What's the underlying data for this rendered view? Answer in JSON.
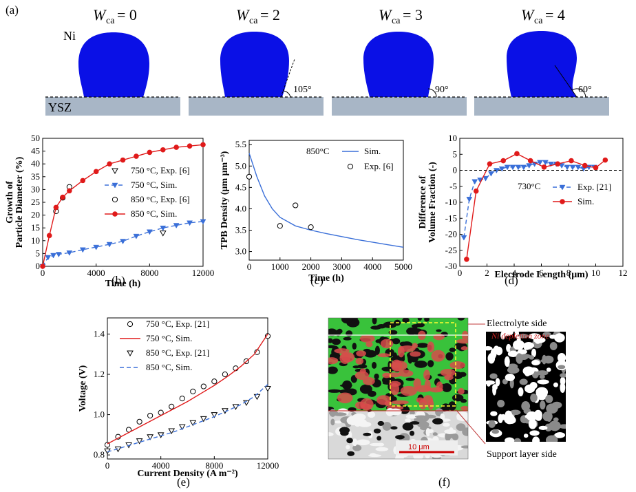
{
  "panel_labels": {
    "a": "(a)",
    "b": "(b)",
    "c": "(c)",
    "d": "(d)",
    "e": "(e)",
    "f": "(f)"
  },
  "panel_a": {
    "wca_symbol": "W",
    "wca_subscript": "ca",
    "drops": [
      {
        "title": "= 0",
        "angle": ""
      },
      {
        "title": "= 2",
        "angle": "105°"
      },
      {
        "title": "= 3",
        "angle": "90°"
      },
      {
        "title": "= 4",
        "angle": "60°"
      }
    ],
    "ni_label": "Ni",
    "ysz_label": "YSZ",
    "colors": {
      "ni": "#0a10e6",
      "ysz": "#a8b6c6"
    }
  },
  "chart_data": [
    {
      "id": "b",
      "type": "line",
      "xlabel": "Time (h)",
      "ylabel_line1": "Growth of",
      "ylabel_line2": "Particle Diameter (%)",
      "xlim": [
        0,
        12000
      ],
      "ylim": [
        0,
        50
      ],
      "xticks": [
        0,
        4000,
        8000,
        12000
      ],
      "yticks": [
        0,
        5,
        10,
        15,
        20,
        25,
        30,
        35,
        40,
        45,
        50
      ],
      "series": [
        {
          "name": "750 °C, Exp. [6]",
          "style": "tri-down-open",
          "x": [
            9000
          ],
          "y": [
            13
          ]
        },
        {
          "name": "750 °C, Sim.",
          "style": "dash-tri-blue",
          "x": [
            0,
            400,
            800,
            1200,
            2000,
            3000,
            4000,
            5000,
            6000,
            7000,
            8000,
            9000,
            10000,
            11000,
            12000
          ],
          "y": [
            0,
            3.5,
            4.3,
            4.7,
            5.3,
            6.5,
            7.5,
            8.6,
            9.8,
            11.8,
            13.5,
            15,
            16,
            17,
            17.5
          ]
        },
        {
          "name": "850 °C, Exp. [6]",
          "style": "circle-open",
          "x": [
            1000,
            1500,
            2000
          ],
          "y": [
            21.5,
            26.8,
            31
          ]
        },
        {
          "name": "850 °C, Sim.",
          "style": "line-circle-red",
          "x": [
            0,
            500,
            1000,
            1500,
            2000,
            3000,
            4000,
            5000,
            6000,
            7000,
            8000,
            9000,
            10000,
            11000,
            12000
          ],
          "y": [
            0,
            12,
            23,
            27,
            29.5,
            33.5,
            37,
            40,
            41.5,
            43,
            44.5,
            45.5,
            46.5,
            47,
            47.5
          ]
        }
      ]
    },
    {
      "id": "c",
      "type": "line",
      "xlabel": "Time (h)",
      "ylabel": "TPB Density (μm μm⁻³)",
      "xlim": [
        0,
        5000
      ],
      "ylim": [
        2.8,
        5.6
      ],
      "xticks": [
        0,
        1000,
        2000,
        3000,
        4000,
        5000
      ],
      "yticks": [
        3.0,
        3.5,
        4.0,
        4.5,
        5.0,
        5.5
      ],
      "annotation": "850°C",
      "series": [
        {
          "name": "Sim.",
          "style": "line-blue",
          "x": [
            0,
            250,
            500,
            750,
            1000,
            1500,
            2000,
            2500,
            3000,
            3500,
            4000,
            4500,
            5000
          ],
          "y": [
            5.3,
            4.75,
            4.3,
            4.0,
            3.8,
            3.6,
            3.5,
            3.42,
            3.35,
            3.28,
            3.22,
            3.16,
            3.1
          ]
        },
        {
          "name": "Exp. [6]",
          "style": "circle-open",
          "x": [
            0,
            1000,
            1500,
            2000
          ],
          "y": [
            4.75,
            3.6,
            4.08,
            3.57
          ]
        }
      ]
    },
    {
      "id": "d",
      "type": "line",
      "xlabel": "Electrode Length (μm)",
      "ylabel_line1": "Difference of",
      "ylabel_line2": "Volume Fraction (-)",
      "xlim": [
        0,
        12
      ],
      "ylim": [
        -30,
        10
      ],
      "xticks": [
        0,
        2,
        4,
        6,
        8,
        10,
        12
      ],
      "yticks": [
        -30,
        -25,
        -20,
        -15,
        -10,
        -5,
        0,
        5,
        10
      ],
      "annotation": "730°C",
      "series": [
        {
          "name": "Exp. [21]",
          "style": "dash-tri-blue",
          "x": [
            0.3,
            0.7,
            1.1,
            1.5,
            1.9,
            2.3,
            2.7,
            3.1,
            3.5,
            3.9,
            4.3,
            4.7,
            5.1,
            5.5,
            5.9,
            6.3,
            6.7,
            7.1,
            7.5,
            7.9,
            8.3,
            8.7,
            9.1,
            9.5,
            9.9
          ],
          "y": [
            -21,
            -9,
            -3.5,
            -3,
            -2.5,
            -1,
            0,
            0.5,
            1,
            1,
            1,
            1,
            1.5,
            2,
            2.5,
            2.5,
            2,
            2,
            1.5,
            1,
            1,
            1,
            0.5,
            1,
            1
          ]
        },
        {
          "name": "Sim.",
          "style": "line-circle-red",
          "x": [
            0.5,
            1.2,
            2.2,
            3.2,
            4.2,
            5.2,
            6.2,
            7.2,
            8.2,
            9.2,
            10.0,
            10.7
          ],
          "y": [
            -27.8,
            -6.5,
            2,
            3,
            5.2,
            3,
            1,
            2,
            3,
            1.5,
            0.8,
            3.2
          ]
        }
      ]
    },
    {
      "id": "e",
      "type": "line",
      "xlabel": "Current Density (A m⁻²)",
      "ylabel": "Voltage (V)",
      "xlim": [
        0,
        12000
      ],
      "ylim": [
        0.78,
        1.48
      ],
      "xticks": [
        0,
        4000,
        8000,
        12000
      ],
      "yticks": [
        0.8,
        1.0,
        1.2,
        1.4
      ],
      "series": [
        {
          "name": "750 °C, Exp. [21]",
          "style": "circle-open",
          "x": [
            0,
            800,
            1600,
            2400,
            3200,
            4000,
            4800,
            5600,
            6400,
            7200,
            8000,
            8800,
            9600,
            10400,
            11200,
            12000
          ],
          "y": [
            0.85,
            0.89,
            0.925,
            0.965,
            0.995,
            1.01,
            1.04,
            1.08,
            1.115,
            1.14,
            1.165,
            1.2,
            1.23,
            1.265,
            1.31,
            1.39
          ]
        },
        {
          "name": "750 °C, Sim.",
          "style": "line-red",
          "x": [
            0,
            1000,
            2000,
            3000,
            4000,
            5000,
            6000,
            7000,
            8000,
            9000,
            10000,
            11000,
            12000
          ],
          "y": [
            0.855,
            0.89,
            0.925,
            0.96,
            0.995,
            1.03,
            1.065,
            1.105,
            1.145,
            1.19,
            1.24,
            1.3,
            1.4
          ]
        },
        {
          "name": "850 °C, Exp. [21]",
          "style": "tri-down-open",
          "x": [
            0,
            800,
            1600,
            2400,
            3200,
            4000,
            4800,
            5600,
            6400,
            7200,
            8000,
            8800,
            9600,
            10400,
            11200,
            12000
          ],
          "y": [
            0.82,
            0.83,
            0.85,
            0.87,
            0.89,
            0.9,
            0.92,
            0.94,
            0.96,
            0.98,
            1.0,
            1.02,
            1.04,
            1.06,
            1.09,
            1.13
          ]
        },
        {
          "name": "850 °C, Sim.",
          "style": "dash-blue",
          "x": [
            0,
            1000,
            2000,
            3000,
            4000,
            5000,
            6000,
            7000,
            8000,
            9000,
            10000,
            11000,
            12000
          ],
          "y": [
            0.815,
            0.835,
            0.855,
            0.875,
            0.895,
            0.915,
            0.94,
            0.965,
            0.99,
            1.02,
            1.05,
            1.09,
            1.15
          ]
        }
      ]
    }
  ],
  "panel_f": {
    "electrolyte_label": "Electrolyte side",
    "support_label": "Support layer side",
    "scalebar": "10 μm",
    "roi_label": "Ni depletion zone"
  }
}
